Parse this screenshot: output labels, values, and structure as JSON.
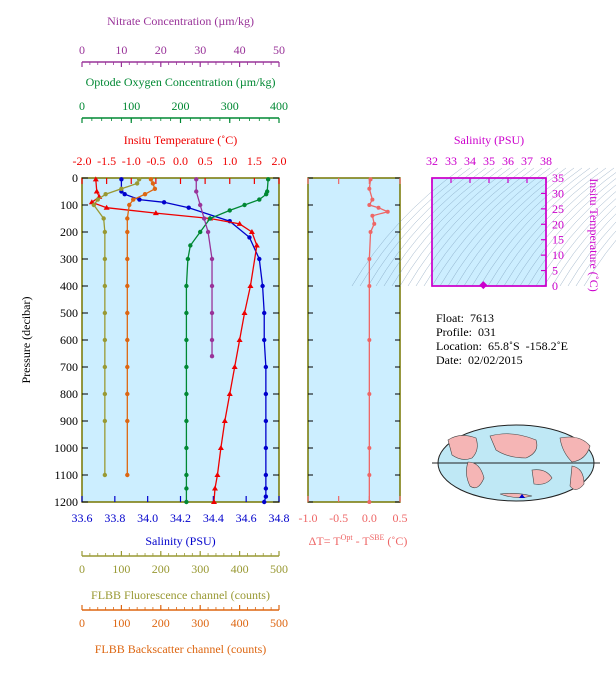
{
  "colors": {
    "nitrate": "#993399",
    "oxygen": "#008833",
    "temperature": "#ee0000",
    "salinity": "#0000cc",
    "fluorescence": "#999933",
    "backscatter": "#dd6611",
    "dt": "#ee6666",
    "magenta": "#cc00cc",
    "plot_bg": "#cceeff",
    "frame": "#777700"
  },
  "axes": {
    "nitrate": {
      "label": "Nitrate Concentration (µm/kg)",
      "ticks": [
        "0",
        "10",
        "20",
        "30",
        "40",
        "50"
      ],
      "range": [
        0,
        50
      ]
    },
    "oxygen": {
      "label": "Optode Oxygen Concentration (µm/kg)",
      "ticks": [
        "0",
        "100",
        "200",
        "300",
        "400"
      ],
      "range": [
        0,
        400
      ]
    },
    "temperature": {
      "label": "Insitu Temperature (˚C)",
      "ticks": [
        "-2.0",
        "-1.5",
        "-1.0",
        "-0.5",
        "0.0",
        "0.5",
        "1.0",
        "1.5",
        "2.0"
      ],
      "range": [
        -2.0,
        2.0
      ]
    },
    "salinity": {
      "label": "Salinity (PSU)",
      "ticks": [
        "33.6",
        "33.8",
        "34.0",
        "34.2",
        "34.4",
        "34.6",
        "34.8"
      ],
      "range": [
        33.6,
        34.8
      ]
    },
    "fluorescence": {
      "label": "FLBB Fluorescence channel (counts)",
      "ticks": [
        "0",
        "100",
        "200",
        "300",
        "400",
        "500"
      ],
      "range": [
        0,
        500
      ]
    },
    "backscatter": {
      "label": "FLBB Backscatter channel (counts)",
      "ticks": [
        "0",
        "100",
        "200",
        "300",
        "400",
        "500"
      ],
      "range": [
        0,
        500
      ]
    },
    "pressure": {
      "label": "Pressure (decibar)",
      "ticks": [
        "0",
        "100",
        "200",
        "300",
        "400",
        "500",
        "600",
        "700",
        "800",
        "900",
        "1000",
        "1100",
        "1200"
      ],
      "range": [
        0,
        1200
      ]
    },
    "dt": {
      "label_main": "ΔT= T",
      "sup1": "Opt",
      "mid": " - T",
      "sup2": "SBE",
      "unit": " (˚C)",
      "ticks": [
        "-1.0",
        "-0.5",
        "0.0",
        "0.5"
      ],
      "range": [
        -1.0,
        0.5
      ]
    },
    "ts_salinity": {
      "label": "Salinity (PSU)",
      "ticks": [
        "32",
        "33",
        "34",
        "35",
        "36",
        "37",
        "38"
      ],
      "range": [
        32,
        38
      ]
    },
    "ts_temperature": {
      "label": "Insitu Temperature (˚C)",
      "ticks": [
        "0",
        "5",
        "10",
        "15",
        "20",
        "25",
        "30",
        "35"
      ],
      "range": [
        0,
        35
      ]
    }
  },
  "info": {
    "float": "Float:  7613",
    "profile": "Profile:  031",
    "location": "Location:  65.8˚S  -158.2˚E",
    "date": "Date:  02/02/2015"
  },
  "chart_data": [
    {
      "type": "line",
      "panel": "profile",
      "y_axis": "Pressure (decibar)",
      "ylim": [
        1200,
        0
      ],
      "series": [
        {
          "name": "Salinity (PSU)",
          "axis": "salinity",
          "x": [
            33.84,
            33.84,
            33.86,
            33.95,
            34.1,
            34.25,
            34.5,
            34.62,
            34.68,
            34.7,
            34.71,
            34.71,
            34.72,
            34.72,
            34.72,
            34.72,
            34.72,
            34.72,
            34.72,
            34.71
          ],
          "y": [
            5,
            50,
            60,
            80,
            90,
            110,
            160,
            220,
            300,
            400,
            500,
            600,
            700,
            800,
            900,
            1000,
            1100,
            1150,
            1180,
            1200
          ]
        },
        {
          "name": "Insitu Temperature (˚C)",
          "axis": "temperature",
          "x": [
            -1.72,
            -1.7,
            -1.65,
            -1.8,
            -1.5,
            -0.5,
            0.6,
            1.2,
            1.45,
            1.55,
            1.42,
            1.3,
            1.2,
            1.1,
            1.0,
            0.9,
            0.82,
            0.75,
            0.7,
            0.68
          ],
          "y": [
            5,
            50,
            70,
            90,
            110,
            130,
            150,
            170,
            200,
            250,
            400,
            500,
            600,
            700,
            800,
            900,
            1000,
            1100,
            1150,
            1200
          ]
        },
        {
          "name": "Optode Oxygen Concentration (µm/kg)",
          "axis": "oxygen",
          "x": [
            378,
            376,
            374,
            360,
            330,
            300,
            260,
            240,
            220,
            215,
            212,
            212,
            212,
            212,
            212,
            212,
            212,
            212,
            212,
            212
          ],
          "y": [
            5,
            50,
            60,
            80,
            100,
            120,
            150,
            200,
            250,
            300,
            400,
            500,
            600,
            700,
            800,
            900,
            1000,
            1100,
            1150,
            1200
          ]
        },
        {
          "name": "Nitrate Concentration (µm/kg)",
          "axis": "nitrate",
          "x": [
            29,
            29,
            30,
            31,
            32,
            33,
            33,
            33,
            33,
            33
          ],
          "y": [
            5,
            50,
            100,
            150,
            200,
            300,
            400,
            500,
            600,
            660
          ]
        },
        {
          "name": "FLBB Fluorescence channel (counts)",
          "axis": "fluorescence",
          "x": [
            145,
            140,
            100,
            60,
            40,
            30,
            55,
            58,
            58,
            58,
            58,
            58,
            58,
            58,
            58,
            58
          ],
          "y": [
            5,
            20,
            40,
            60,
            80,
            100,
            150,
            200,
            300,
            400,
            500,
            600,
            700,
            800,
            900,
            1100
          ]
        },
        {
          "name": "FLBB Backscatter channel (counts)",
          "axis": "backscatter",
          "x": [
            175,
            180,
            185,
            160,
            130,
            120,
            115,
            115,
            115,
            115,
            115,
            115,
            115,
            115,
            115,
            115
          ],
          "y": [
            5,
            20,
            40,
            60,
            80,
            100,
            150,
            200,
            300,
            400,
            500,
            600,
            700,
            800,
            900,
            1100
          ]
        }
      ]
    },
    {
      "type": "line",
      "panel": "dt",
      "x_axis": "dt",
      "ylim": [
        1200,
        0
      ],
      "series": [
        {
          "name": "dt",
          "axis": "dt",
          "x": [
            0.02,
            0.0,
            0.05,
            0.0,
            0.15,
            0.3,
            0.05,
            0.08,
            0.02,
            0.0,
            0.0,
            0.0,
            0.0,
            0.0,
            0.0,
            0.0
          ],
          "y": [
            5,
            40,
            80,
            100,
            110,
            125,
            140,
            170,
            200,
            300,
            400,
            600,
            800,
            1000,
            1100,
            1200
          ]
        }
      ]
    },
    {
      "type": "scatter",
      "panel": "ts",
      "xlim": [
        32,
        38
      ],
      "ylim": [
        0,
        35
      ],
      "points": [
        {
          "salinity": 34.7,
          "temperature": 0.3
        }
      ]
    }
  ]
}
